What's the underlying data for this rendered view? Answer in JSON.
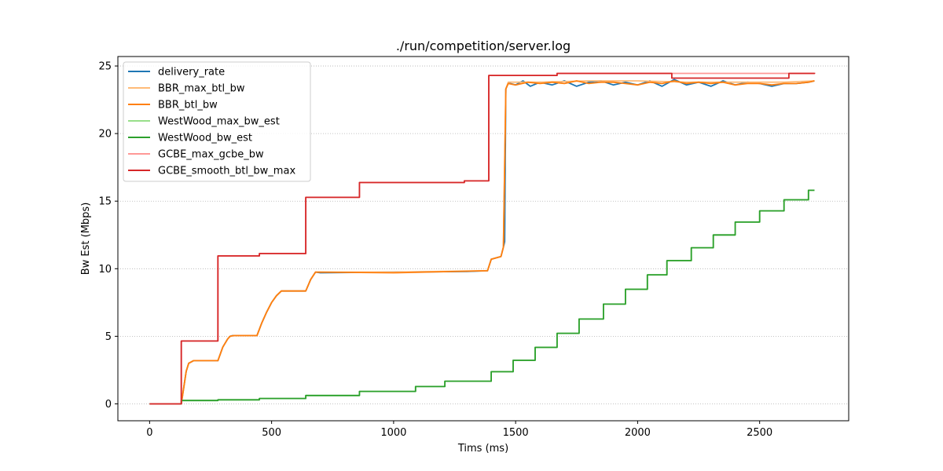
{
  "chart_data": {
    "type": "line",
    "title": "./run/competition/server.log",
    "xlabel": "Tims (ms)",
    "ylabel": "Bw Est (Mbps)",
    "xlim": [
      -130,
      2865
    ],
    "ylim": [
      -1.25,
      25.7
    ],
    "xticks": [
      0,
      500,
      1000,
      1500,
      2000,
      2500
    ],
    "yticks": [
      0,
      5,
      10,
      15,
      20,
      25
    ],
    "grid": "horizontal-dotted",
    "legend_position": "upper-left",
    "series": [
      {
        "name": "delivery_rate",
        "color": "#1f77b4",
        "x": [
          0,
          130,
          150,
          160,
          180,
          280,
          300,
          320,
          330,
          340,
          345,
          440,
          460,
          480,
          500,
          520,
          540,
          560,
          580,
          640,
          660,
          680,
          700,
          1000,
          1300,
          1385,
          1400,
          1440,
          1450,
          1455,
          1460,
          1470,
          1500,
          1530,
          1560,
          1600,
          1650,
          1700,
          1750,
          1800,
          1850,
          1900,
          1950,
          2000,
          2050,
          2100,
          2150,
          2200,
          2250,
          2300,
          2350,
          2400,
          2450,
          2500,
          2550,
          2600,
          2650,
          2700,
          2725
        ],
        "y": [
          0,
          0,
          2.4,
          3.0,
          3.2,
          3.2,
          4.2,
          4.8,
          5.0,
          5.05,
          5.05,
          5.05,
          6.0,
          6.8,
          7.5,
          8.0,
          8.35,
          8.35,
          8.35,
          8.35,
          9.2,
          9.75,
          9.7,
          9.75,
          9.8,
          9.85,
          10.7,
          10.9,
          11.6,
          12.0,
          23.3,
          23.75,
          23.6,
          23.9,
          23.5,
          23.8,
          23.6,
          23.9,
          23.5,
          23.8,
          23.9,
          23.6,
          23.8,
          23.6,
          23.9,
          23.5,
          24.0,
          23.6,
          23.8,
          23.5,
          23.9,
          23.6,
          23.8,
          23.7,
          23.5,
          23.7,
          23.7,
          23.8,
          23.9
        ]
      },
      {
        "name": "BBR_max_btl_bw",
        "color": "#ffbb78",
        "x": [
          0,
          130,
          150,
          160,
          180,
          280,
          300,
          320,
          330,
          345,
          440,
          460,
          480,
          500,
          520,
          540,
          640,
          660,
          680,
          1000,
          1385,
          1400,
          1440,
          1450,
          1460,
          1470,
          1600,
          1800,
          2000,
          2200,
          2400,
          2600,
          2725
        ],
        "y": [
          0,
          0,
          2.4,
          3.0,
          3.2,
          3.2,
          4.2,
          4.8,
          5.0,
          5.05,
          5.05,
          6.0,
          6.8,
          7.5,
          8.0,
          8.35,
          8.35,
          9.2,
          9.75,
          9.75,
          9.85,
          10.7,
          10.9,
          11.6,
          23.3,
          23.8,
          23.8,
          23.9,
          23.9,
          23.8,
          23.8,
          23.8,
          23.9
        ]
      },
      {
        "name": "BBR_btl_bw",
        "color": "#ff7f0e",
        "x": [
          0,
          130,
          150,
          160,
          180,
          280,
          300,
          320,
          330,
          345,
          440,
          460,
          480,
          500,
          520,
          540,
          640,
          660,
          680,
          1000,
          1385,
          1400,
          1440,
          1450,
          1460,
          1470,
          1500,
          1550,
          1600,
          1650,
          1700,
          1750,
          1800,
          1850,
          1900,
          1950,
          2000,
          2050,
          2100,
          2150,
          2200,
          2250,
          2300,
          2350,
          2400,
          2450,
          2500,
          2550,
          2600,
          2650,
          2700,
          2725
        ],
        "y": [
          0,
          0,
          2.4,
          3.0,
          3.2,
          3.2,
          4.2,
          4.8,
          5.0,
          5.05,
          5.05,
          6.0,
          6.8,
          7.5,
          8.0,
          8.35,
          8.35,
          9.2,
          9.75,
          9.7,
          9.85,
          10.7,
          10.9,
          11.6,
          23.3,
          23.7,
          23.6,
          23.8,
          23.7,
          23.8,
          23.7,
          23.9,
          23.7,
          23.8,
          23.8,
          23.7,
          23.6,
          23.8,
          23.7,
          23.9,
          23.7,
          23.8,
          23.7,
          23.8,
          23.6,
          23.7,
          23.7,
          23.6,
          23.7,
          23.7,
          23.8,
          23.9
        ]
      },
      {
        "name": "WestWood_max_bw_est",
        "color": "#98df8a",
        "x": [
          0,
          130,
          280,
          450,
          640,
          860,
          1090,
          1210,
          1400,
          1490,
          1580,
          1670,
          1760,
          1860,
          1950,
          2040,
          2120,
          2220,
          2310,
          2400,
          2500,
          2600,
          2700,
          2725
        ],
        "y": [
          0,
          0.25,
          0.3,
          0.4,
          0.62,
          0.92,
          1.28,
          1.68,
          2.38,
          3.22,
          4.18,
          5.22,
          6.28,
          7.38,
          8.48,
          9.55,
          10.6,
          11.55,
          12.5,
          13.45,
          14.28,
          15.1,
          15.8,
          15.8
        ]
      },
      {
        "name": "WestWood_bw_est",
        "color": "#2ca02c",
        "x": [
          0,
          130,
          280,
          450,
          640,
          860,
          1090,
          1210,
          1400,
          1490,
          1580,
          1670,
          1760,
          1860,
          1950,
          2040,
          2120,
          2220,
          2310,
          2400,
          2500,
          2600,
          2700,
          2725
        ],
        "y": [
          0,
          0.25,
          0.3,
          0.4,
          0.62,
          0.92,
          1.28,
          1.68,
          2.38,
          3.22,
          4.18,
          5.22,
          6.28,
          7.38,
          8.48,
          9.55,
          10.6,
          11.55,
          12.5,
          13.45,
          14.28,
          15.1,
          15.8,
          15.8
        ]
      },
      {
        "name": "GCBE_max_gcbe_bw",
        "color": "#ff9896",
        "x": [
          0,
          130,
          170,
          280,
          450,
          550,
          640,
          770,
          860,
          1290,
          1390,
          1670,
          2140,
          2620,
          2725
        ],
        "y": [
          0,
          4.65,
          4.65,
          10.95,
          11.12,
          11.12,
          15.28,
          15.28,
          16.38,
          16.5,
          24.3,
          24.45,
          24.45,
          24.45,
          24.5
        ]
      },
      {
        "name": "GCBE_smooth_btl_bw_max",
        "color": "#d62728",
        "x": [
          0,
          130,
          170,
          280,
          450,
          550,
          640,
          770,
          860,
          1290,
          1390,
          1670,
          2140,
          2620,
          2725
        ],
        "y": [
          0,
          4.65,
          4.65,
          10.95,
          11.12,
          11.12,
          15.28,
          15.28,
          16.38,
          16.5,
          24.3,
          24.45,
          24.1,
          24.45,
          24.5
        ]
      }
    ]
  }
}
